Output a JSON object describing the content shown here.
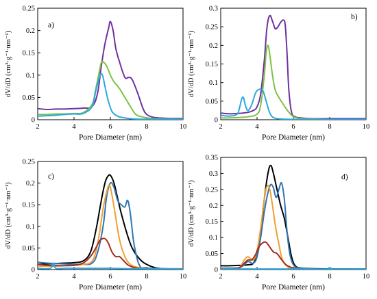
{
  "chart_data": [
    {
      "panel": "a",
      "type": "line",
      "xlabel": "Pore Diameter (nm)",
      "ylabel": "dV/dD (cm³·g⁻¹·nm⁻¹)",
      "xlim": [
        2,
        10
      ],
      "ylim": [
        0,
        0.25
      ],
      "xticks": [
        "2",
        "4",
        "6",
        "8",
        "10"
      ],
      "yticks": [
        "0",
        "0.05",
        "0.1",
        "0.15",
        "0.2",
        "0.25"
      ],
      "grid": false,
      "series": [
        {
          "color": "#7030a0",
          "x": [
            2,
            2.5,
            3,
            3.5,
            4,
            4.5,
            5,
            5.3,
            5.5,
            5.7,
            5.9,
            6.0,
            6.15,
            6.3,
            6.5,
            6.8,
            7.0,
            7.2,
            7.5,
            7.8,
            8.0,
            8.3,
            8.7,
            9.2,
            9.6,
            10
          ],
          "y": [
            0.025,
            0.023,
            0.024,
            0.024,
            0.025,
            0.026,
            0.03,
            0.06,
            0.12,
            0.17,
            0.205,
            0.22,
            0.2,
            0.16,
            0.13,
            0.095,
            0.095,
            0.09,
            0.06,
            0.025,
            0.012,
            0.006,
            0.004,
            0.003,
            0.003,
            0.003
          ]
        },
        {
          "color": "#7cc242",
          "x": [
            2,
            2.5,
            3,
            3.5,
            4,
            4.5,
            5,
            5.2,
            5.4,
            5.5,
            5.6,
            5.8,
            6.0,
            6.2,
            6.5,
            6.8,
            7.1,
            7.4,
            7.8,
            8.2,
            9,
            10
          ],
          "y": [
            0.012,
            0.012,
            0.013,
            0.013,
            0.014,
            0.016,
            0.035,
            0.07,
            0.11,
            0.128,
            0.13,
            0.12,
            0.1,
            0.085,
            0.07,
            0.05,
            0.03,
            0.012,
            0.006,
            0.003,
            0.002,
            0.002
          ]
        },
        {
          "color": "#29a8e0",
          "x": [
            2,
            2.5,
            3,
            3.5,
            4,
            4.5,
            5,
            5.2,
            5.4,
            5.5,
            5.6,
            5.7,
            5.9,
            6.1,
            6.4,
            6.8,
            7.2,
            8,
            9,
            10
          ],
          "y": [
            0.008,
            0.009,
            0.01,
            0.012,
            0.013,
            0.014,
            0.03,
            0.065,
            0.095,
            0.103,
            0.095,
            0.075,
            0.04,
            0.018,
            0.008,
            0.004,
            0.002,
            0.001,
            0.001,
            0.001
          ]
        }
      ]
    },
    {
      "panel": "b",
      "type": "line",
      "xlabel": "Pore Diameter (nm)",
      "ylabel": "dV/dD (cm³·g⁻¹·nm⁻¹)",
      "xlim": [
        2,
        10
      ],
      "ylim": [
        0,
        0.3
      ],
      "xticks": [
        "2",
        "4",
        "6",
        "8",
        "10"
      ],
      "yticks": [
        "0",
        "0.05",
        "0.1",
        "0.15",
        "0.2",
        "0.25",
        "0.3"
      ],
      "grid": false,
      "series": [
        {
          "color": "#7030a0",
          "x": [
            2,
            2.5,
            3,
            3.5,
            3.8,
            4.0,
            4.2,
            4.4,
            4.55,
            4.7,
            4.85,
            5.0,
            5.15,
            5.3,
            5.45,
            5.55,
            5.65,
            5.75,
            5.9,
            6.1,
            6.4,
            7,
            8,
            9,
            10
          ],
          "y": [
            0.018,
            0.016,
            0.017,
            0.02,
            0.025,
            0.035,
            0.07,
            0.16,
            0.25,
            0.28,
            0.265,
            0.245,
            0.25,
            0.262,
            0.268,
            0.255,
            0.18,
            0.08,
            0.02,
            0.008,
            0.005,
            0.003,
            0.003,
            0.003,
            0.003
          ]
        },
        {
          "color": "#7cc242",
          "x": [
            2,
            2.5,
            3,
            3.5,
            4,
            4.2,
            4.4,
            4.5,
            4.6,
            4.7,
            4.85,
            5.0,
            5.2,
            5.4,
            5.6,
            5.9,
            6.2,
            7,
            8,
            10
          ],
          "y": [
            0.005,
            0.005,
            0.006,
            0.008,
            0.015,
            0.04,
            0.12,
            0.18,
            0.2,
            0.175,
            0.12,
            0.08,
            0.06,
            0.045,
            0.03,
            0.012,
            0.005,
            0.002,
            0.001,
            0.001
          ]
        },
        {
          "color": "#29a8e0",
          "x": [
            2,
            2.5,
            2.9,
            3.05,
            3.15,
            3.25,
            3.35,
            3.5,
            3.7,
            3.9,
            4.05,
            4.2,
            4.35,
            4.5,
            4.65,
            4.8,
            5.0,
            5.3,
            6,
            7,
            8,
            10
          ],
          "y": [
            0.012,
            0.01,
            0.015,
            0.035,
            0.055,
            0.06,
            0.04,
            0.025,
            0.04,
            0.07,
            0.08,
            0.082,
            0.075,
            0.05,
            0.025,
            0.01,
            0.004,
            0.002,
            0.001,
            0.001,
            0.001,
            0.001
          ]
        }
      ]
    },
    {
      "panel": "c",
      "type": "line",
      "xlabel": "Pore Diameter (nm)",
      "ylabel": "dV/dD (cm³·g⁻¹·nm⁻¹)",
      "xlim": [
        2,
        10
      ],
      "ylim": [
        0,
        0.25
      ],
      "xticks": [
        "2",
        "4",
        "6",
        "8",
        "10"
      ],
      "yticks": [
        "0",
        "0.05",
        "0.1",
        "0.15",
        "0.2",
        "0.25"
      ],
      "grid": false,
      "series": [
        {
          "color": "#000000",
          "x": [
            2,
            2.5,
            3,
            3.5,
            4,
            4.5,
            4.9,
            5.2,
            5.5,
            5.7,
            5.85,
            6.0,
            6.2,
            6.4,
            6.6,
            6.9,
            7.2,
            7.6,
            8.0,
            8.5,
            9,
            10
          ],
          "y": [
            0.012,
            0.013,
            0.014,
            0.015,
            0.016,
            0.02,
            0.04,
            0.09,
            0.16,
            0.2,
            0.215,
            0.218,
            0.2,
            0.165,
            0.13,
            0.085,
            0.05,
            0.025,
            0.012,
            0.004,
            0.002,
            0.001
          ]
        },
        {
          "color": "#2e75b6",
          "x": [
            2,
            2.5,
            3,
            3.5,
            4,
            4.5,
            5,
            5.3,
            5.6,
            5.8,
            6.0,
            6.2,
            6.4,
            6.6,
            6.8,
            6.95,
            7.1,
            7.3,
            7.6,
            8,
            9,
            10
          ],
          "y": [
            0.017,
            0.015,
            0.014,
            0.013,
            0.012,
            0.012,
            0.015,
            0.04,
            0.1,
            0.17,
            0.2,
            0.19,
            0.16,
            0.15,
            0.145,
            0.16,
            0.13,
            0.06,
            0.01,
            0.004,
            0.002,
            0.001
          ]
        },
        {
          "color": "#f0a030",
          "x": [
            2,
            2.5,
            3,
            3.5,
            4,
            4.5,
            5,
            5.3,
            5.6,
            5.8,
            5.95,
            6.1,
            6.3,
            6.5,
            6.8,
            7.1,
            7.5,
            8,
            9,
            10
          ],
          "y": [
            0.008,
            0.008,
            0.008,
            0.009,
            0.01,
            0.012,
            0.02,
            0.06,
            0.14,
            0.18,
            0.195,
            0.17,
            0.12,
            0.07,
            0.03,
            0.012,
            0.005,
            0.002,
            0.001,
            0.001
          ]
        },
        {
          "color": "#a52a1e",
          "x": [
            2,
            2.5,
            3,
            3.5,
            4,
            4.5,
            4.9,
            5.2,
            5.4,
            5.6,
            5.75,
            5.9,
            6.1,
            6.3,
            6.5,
            6.7,
            7.0,
            7.4,
            8,
            9,
            10
          ],
          "y": [
            0.012,
            0.01,
            0.009,
            0.009,
            0.01,
            0.015,
            0.03,
            0.05,
            0.066,
            0.072,
            0.07,
            0.06,
            0.04,
            0.03,
            0.03,
            0.022,
            0.01,
            0.004,
            0.002,
            0.001,
            0.001
          ]
        },
        {
          "color": "#29a8e0",
          "x": [
            2,
            2.7,
            2.85,
            3.0,
            3.5,
            4,
            4.5,
            5,
            5.5,
            6,
            7,
            8,
            9,
            10
          ],
          "y": [
            0.003,
            0.003,
            0.015,
            0.003,
            0.003,
            0.003,
            0.003,
            0.003,
            0.003,
            0.003,
            0.002,
            0.002,
            0.002,
            0.002
          ]
        }
      ]
    },
    {
      "panel": "d",
      "type": "line",
      "xlabel": "Pore Diameter (nm)",
      "ylabel": "dV/dD (cm³·g⁻¹·nm⁻¹)",
      "xlim": [
        2,
        10
      ],
      "ylim": [
        0,
        0.35
      ],
      "xticks": [
        "2",
        "4",
        "6",
        "8",
        "10"
      ],
      "yticks": [
        "0",
        "0.05",
        "0.1",
        "0.15",
        "0.2",
        "0.25",
        "0.3",
        "0.35"
      ],
      "grid": false,
      "series": [
        {
          "color": "#000000",
          "x": [
            2,
            2.5,
            3,
            3.5,
            3.8,
            4.0,
            4.2,
            4.4,
            4.6,
            4.75,
            4.9,
            5.1,
            5.3,
            5.5,
            5.7,
            5.9,
            6.1,
            6.4,
            7,
            8,
            9,
            10
          ],
          "y": [
            0.012,
            0.012,
            0.013,
            0.015,
            0.02,
            0.05,
            0.12,
            0.22,
            0.3,
            0.325,
            0.3,
            0.25,
            0.2,
            0.16,
            0.1,
            0.04,
            0.012,
            0.005,
            0.003,
            0.002,
            0.002,
            0.002
          ]
        },
        {
          "color": "#2e75b6",
          "x": [
            2,
            2.5,
            3,
            3.3,
            3.5,
            3.8,
            4.0,
            4.2,
            4.4,
            4.6,
            4.75,
            4.9,
            5.05,
            5.2,
            5.35,
            5.5,
            5.65,
            5.8,
            6.0,
            6.3,
            7,
            8,
            9,
            10
          ],
          "y": [
            0.005,
            0.005,
            0.006,
            0.015,
            0.025,
            0.02,
            0.04,
            0.1,
            0.18,
            0.24,
            0.265,
            0.255,
            0.225,
            0.25,
            0.27,
            0.22,
            0.12,
            0.05,
            0.015,
            0.005,
            0.002,
            0.001,
            0.001,
            0.001
          ]
        },
        {
          "color": "#f0a030",
          "x": [
            2,
            2.5,
            3,
            3.3,
            3.5,
            3.8,
            4.0,
            4.2,
            4.4,
            4.55,
            4.7,
            4.85,
            5.0,
            5.2,
            5.4,
            5.7,
            6.0,
            7,
            8,
            10
          ],
          "y": [
            0.003,
            0.003,
            0.005,
            0.03,
            0.04,
            0.03,
            0.06,
            0.13,
            0.22,
            0.26,
            0.25,
            0.2,
            0.14,
            0.08,
            0.03,
            0.008,
            0.003,
            0.001,
            0.001,
            0.001
          ]
        },
        {
          "color": "#a52a1e",
          "x": [
            2,
            2.5,
            3,
            3.3,
            3.5,
            3.7,
            3.9,
            4.1,
            4.3,
            4.5,
            4.7,
            4.9,
            5.1,
            5.3,
            5.6,
            6.0,
            6.5,
            7,
            8,
            10
          ],
          "y": [
            0.002,
            0.002,
            0.005,
            0.02,
            0.03,
            0.03,
            0.045,
            0.07,
            0.083,
            0.085,
            0.07,
            0.055,
            0.05,
            0.035,
            0.015,
            0.005,
            0.002,
            0.001,
            0.001,
            0.001
          ]
        },
        {
          "color": "#29a8e0",
          "x": [
            2,
            4,
            6,
            7.9,
            8.0,
            8.1,
            10
          ],
          "y": [
            0.002,
            0.002,
            0.002,
            0.002,
            0.006,
            0.002,
            0.002
          ]
        }
      ]
    }
  ]
}
